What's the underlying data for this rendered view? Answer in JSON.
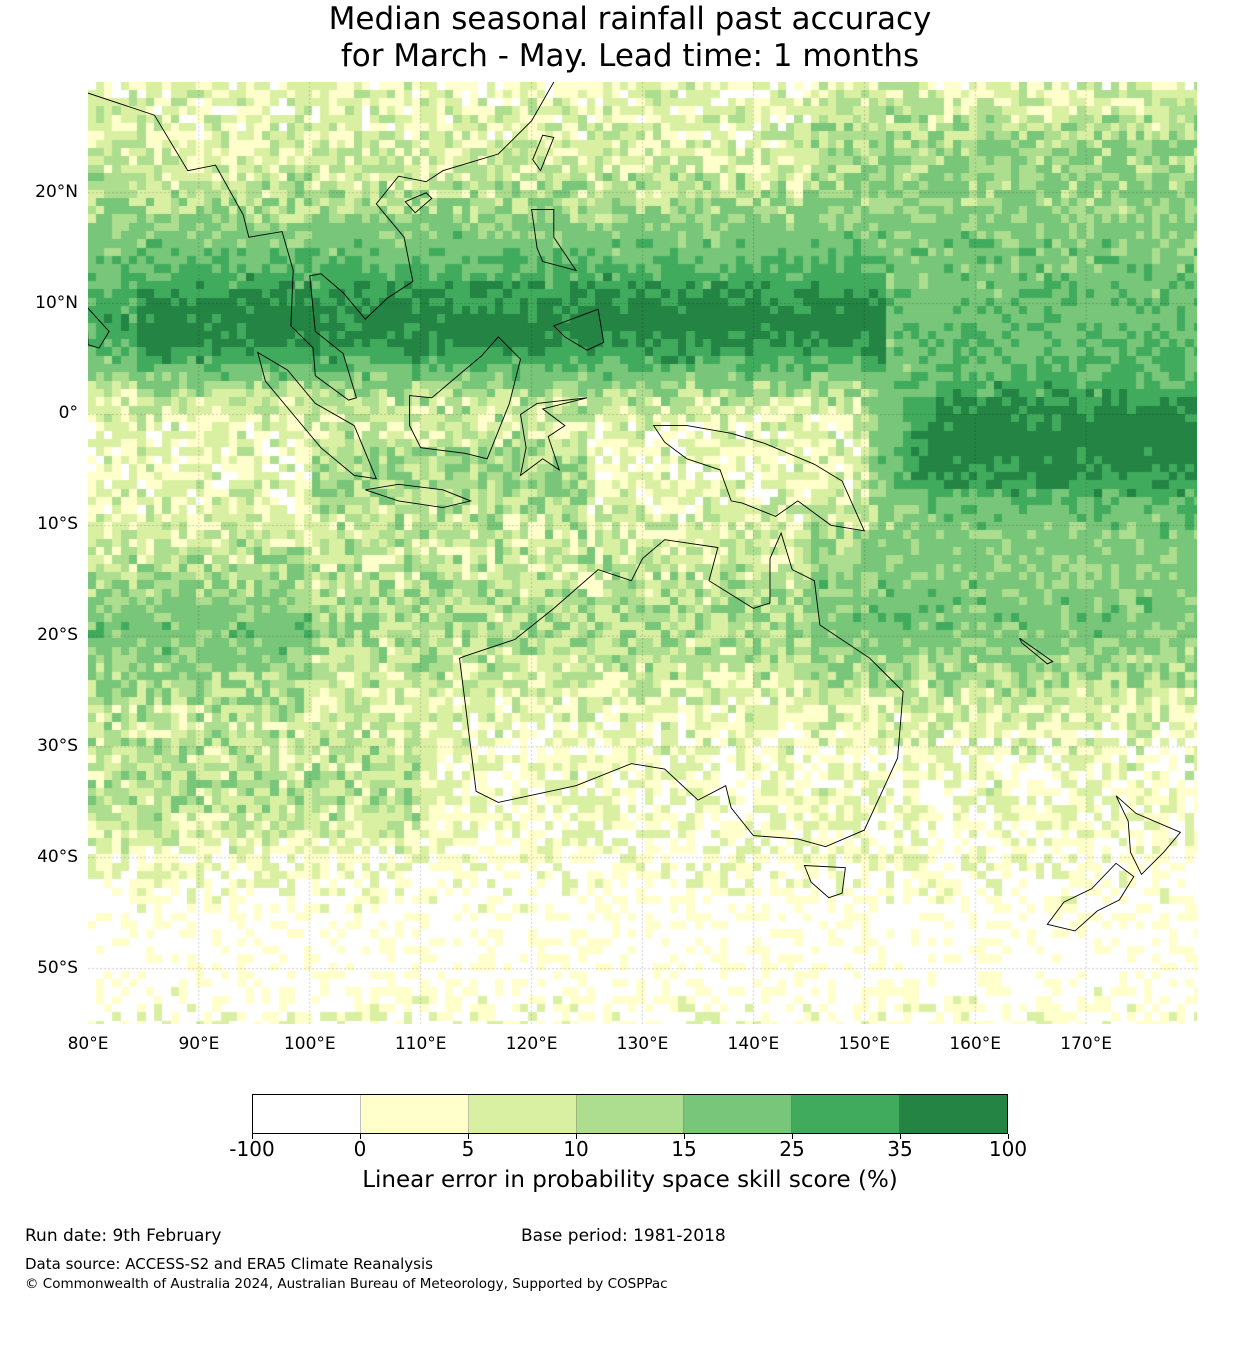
{
  "title": {
    "line1": "Median seasonal rainfall past accuracy",
    "line2": "for March - May. Lead time: 1 months"
  },
  "map": {
    "lon_range": [
      80,
      180
    ],
    "lat_range": [
      -55,
      30
    ],
    "lat_labels": [
      {
        "v": 20,
        "t": "20°N"
      },
      {
        "v": 10,
        "t": "10°N"
      },
      {
        "v": 0,
        "t": "0°"
      },
      {
        "v": -10,
        "t": "10°S"
      },
      {
        "v": -20,
        "t": "20°S"
      },
      {
        "v": -30,
        "t": "30°S"
      },
      {
        "v": -40,
        "t": "40°S"
      },
      {
        "v": -50,
        "t": "50°S"
      }
    ],
    "lon_labels": [
      {
        "v": 80,
        "t": "80°E"
      },
      {
        "v": 90,
        "t": "90°E"
      },
      {
        "v": 100,
        "t": "100°E"
      },
      {
        "v": 110,
        "t": "110°E"
      },
      {
        "v": 120,
        "t": "120°E"
      },
      {
        "v": 130,
        "t": "130°E"
      },
      {
        "v": 140,
        "t": "140°E"
      },
      {
        "v": 150,
        "t": "150°E"
      },
      {
        "v": 160,
        "t": "160°E"
      },
      {
        "v": 170,
        "t": "170°E"
      }
    ]
  },
  "colorbar": {
    "ticks": [
      "-100",
      "0",
      "5",
      "10",
      "15",
      "25",
      "35",
      "100"
    ],
    "colors": [
      "#ffffff",
      "#ffffcc",
      "#d9f0a3",
      "#addd8e",
      "#78c679",
      "#41ab5d",
      "#238443"
    ],
    "label": "Linear error in probability space skill score (%)"
  },
  "footer": {
    "run_date": "Run date: 9th February",
    "base_period": "Base period: 1981-2018",
    "data_source": "Data source: ACCESS-S2 and ERA5 Climate Reanalysis",
    "copyright": "© Commonwealth of Australia 2024, Australian Bureau of Meteorology, Supported by COSPPac"
  }
}
